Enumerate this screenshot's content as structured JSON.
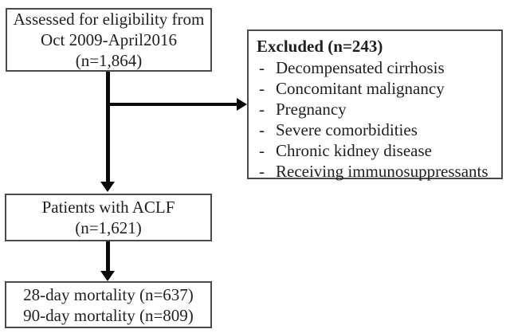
{
  "flowchart": {
    "boxes": {
      "eligibility": {
        "line1": "Assessed for eligibility from",
        "line2": "Oct 2009-April2016",
        "line3": "(n=1,864)"
      },
      "excluded": {
        "title": "Excluded (n=243)",
        "bullet": "-",
        "items": [
          "Decompensated cirrhosis",
          "Concomitant malignancy",
          "Pregnancy",
          "Severe comorbidities",
          "Chronic kidney disease",
          "Receiving immunosuppressants"
        ]
      },
      "aclf": {
        "line1": "Patients with ACLF",
        "line2": "(n=1,621)"
      },
      "mortality": {
        "line1": "28-day mortality (n=637)",
        "line2": "90-day mortality (n=809)"
      }
    },
    "colors": {
      "border": "#4a4a4a",
      "arrow": "#0a0a0a",
      "text": "#1f1f1f",
      "background": "#ffffff"
    }
  }
}
